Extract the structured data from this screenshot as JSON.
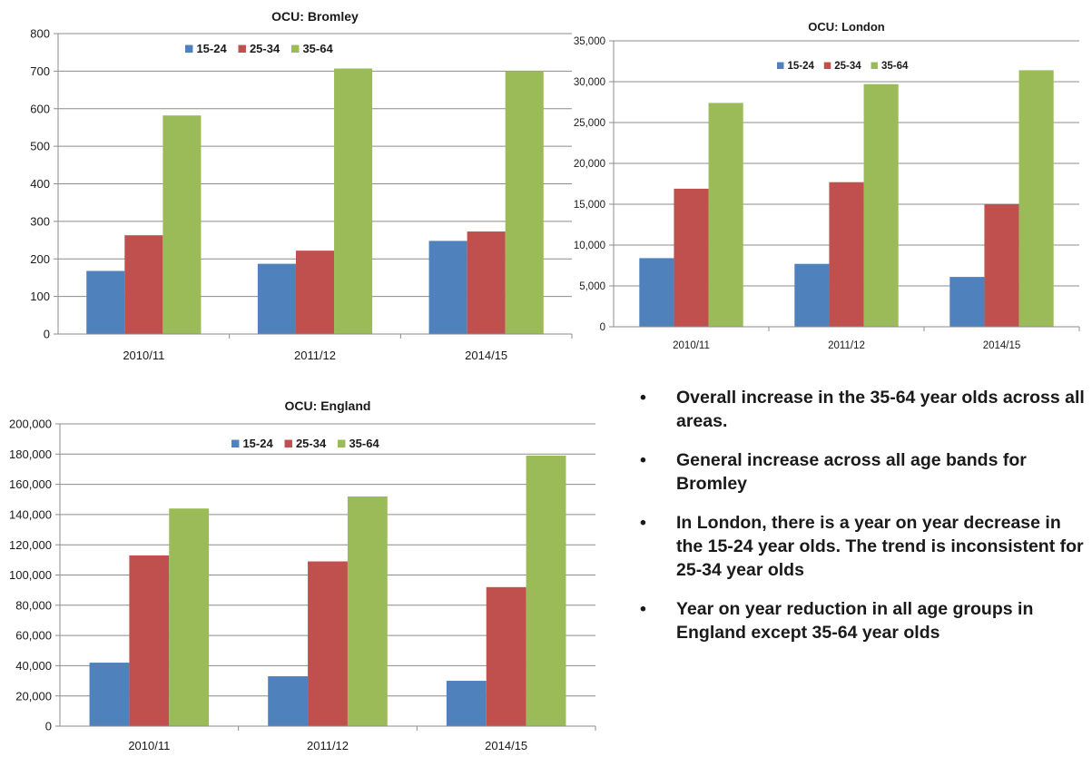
{
  "colors": {
    "s1524": "#4F81BD",
    "s2534": "#C0504D",
    "s3564": "#9BBB59"
  },
  "chart_data": [
    {
      "type": "bar",
      "title": "OCU: Bromley",
      "categories": [
        "2010/11",
        "2011/12",
        "2014/15"
      ],
      "series": [
        {
          "name": "15-24",
          "values": [
            168,
            187,
            248
          ]
        },
        {
          "name": "25-34",
          "values": [
            263,
            222,
            273
          ]
        },
        {
          "name": "35-64",
          "values": [
            582,
            707,
            700
          ]
        }
      ],
      "ylim": [
        0,
        800
      ],
      "yticks": [
        0,
        100,
        200,
        300,
        400,
        500,
        600,
        700,
        800
      ],
      "ytick_labels": [
        "0",
        "100",
        "200",
        "300",
        "400",
        "500",
        "600",
        "700",
        "800"
      ],
      "grid": true,
      "legend": "top-center"
    },
    {
      "type": "bar",
      "title": "OCU: London",
      "categories": [
        "2010/11",
        "2011/12",
        "2014/15"
      ],
      "series": [
        {
          "name": "15-24",
          "values": [
            8400,
            7700,
            6100
          ]
        },
        {
          "name": "25-34",
          "values": [
            16900,
            17700,
            15000
          ]
        },
        {
          "name": "35-64",
          "values": [
            27400,
            29700,
            31400
          ]
        }
      ],
      "ylim": [
        0,
        35000
      ],
      "yticks": [
        0,
        5000,
        10000,
        15000,
        20000,
        25000,
        30000,
        35000
      ],
      "ytick_labels": [
        "0",
        "5,000",
        "10,000",
        "15,000",
        "20,000",
        "25,000",
        "30,000",
        "35,000"
      ],
      "grid": true,
      "legend": "top-center"
    },
    {
      "type": "bar",
      "title": "OCU: England",
      "categories": [
        "2010/11",
        "2011/12",
        "2014/15"
      ],
      "series": [
        {
          "name": "15-24",
          "values": [
            42000,
            33000,
            30000
          ]
        },
        {
          "name": "25-34",
          "values": [
            113000,
            109000,
            92000
          ]
        },
        {
          "name": "35-64",
          "values": [
            144000,
            152000,
            179000
          ]
        }
      ],
      "ylim": [
        0,
        200000
      ],
      "yticks": [
        0,
        20000,
        40000,
        60000,
        80000,
        100000,
        120000,
        140000,
        160000,
        180000,
        200000
      ],
      "ytick_labels": [
        "0",
        "20,000",
        "40,000",
        "60,000",
        "80,000",
        "100,000",
        "120,000",
        "140,000",
        "160,000",
        "180,000",
        "200,000"
      ],
      "grid": true,
      "legend": "top-center"
    }
  ],
  "bullets": {
    "marker": "•",
    "items": [
      "Overall increase in the 35-64 year olds across all areas.",
      "General increase across all age bands for Bromley",
      "In London,  there is a year on year decrease in the 15-24 year olds. The trend is inconsistent for 25-34 year olds",
      "Year on year reduction in all age groups in England  except 35-64 year olds"
    ]
  }
}
